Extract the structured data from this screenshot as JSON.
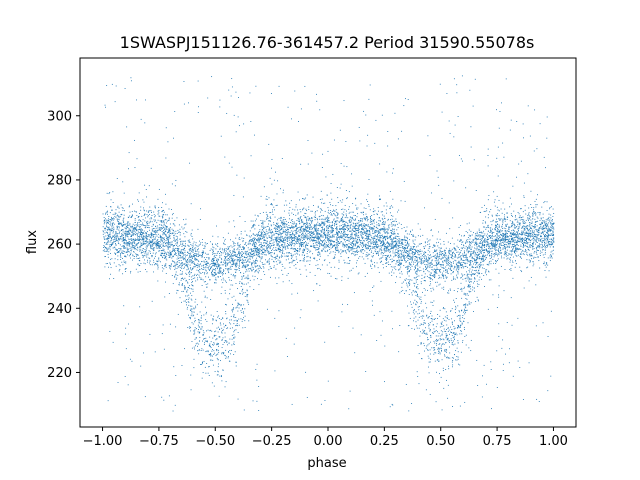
{
  "chart_data": {
    "type": "scatter",
    "title": "1SWASPJ151126.76-361457.2 Period 31590.55078s",
    "xlabel": "phase",
    "ylabel": "flux",
    "xlim": [
      -1.1,
      1.1
    ],
    "ylim": [
      203,
      318
    ],
    "x_ticks": [
      -1.0,
      -0.75,
      -0.5,
      -0.25,
      0.0,
      0.25,
      0.5,
      0.75,
      1.0
    ],
    "x_tick_labels": [
      "−1.00",
      "−0.75",
      "−0.50",
      "−0.25",
      "0.00",
      "0.25",
      "0.50",
      "0.75",
      "1.00"
    ],
    "y_ticks": [
      220,
      240,
      260,
      280,
      300
    ],
    "y_tick_labels": [
      "220",
      "240",
      "260",
      "280",
      "300"
    ],
    "grid": false,
    "marker_color": "#1f77b4",
    "phase_range": [
      -1.0,
      1.0
    ],
    "out_of_eclipse_flux": 263,
    "eclipses": [
      {
        "center_phase": -0.5,
        "min_flux": 230
      },
      {
        "center_phase": 0.5,
        "min_flux": 230
      }
    ]
  }
}
